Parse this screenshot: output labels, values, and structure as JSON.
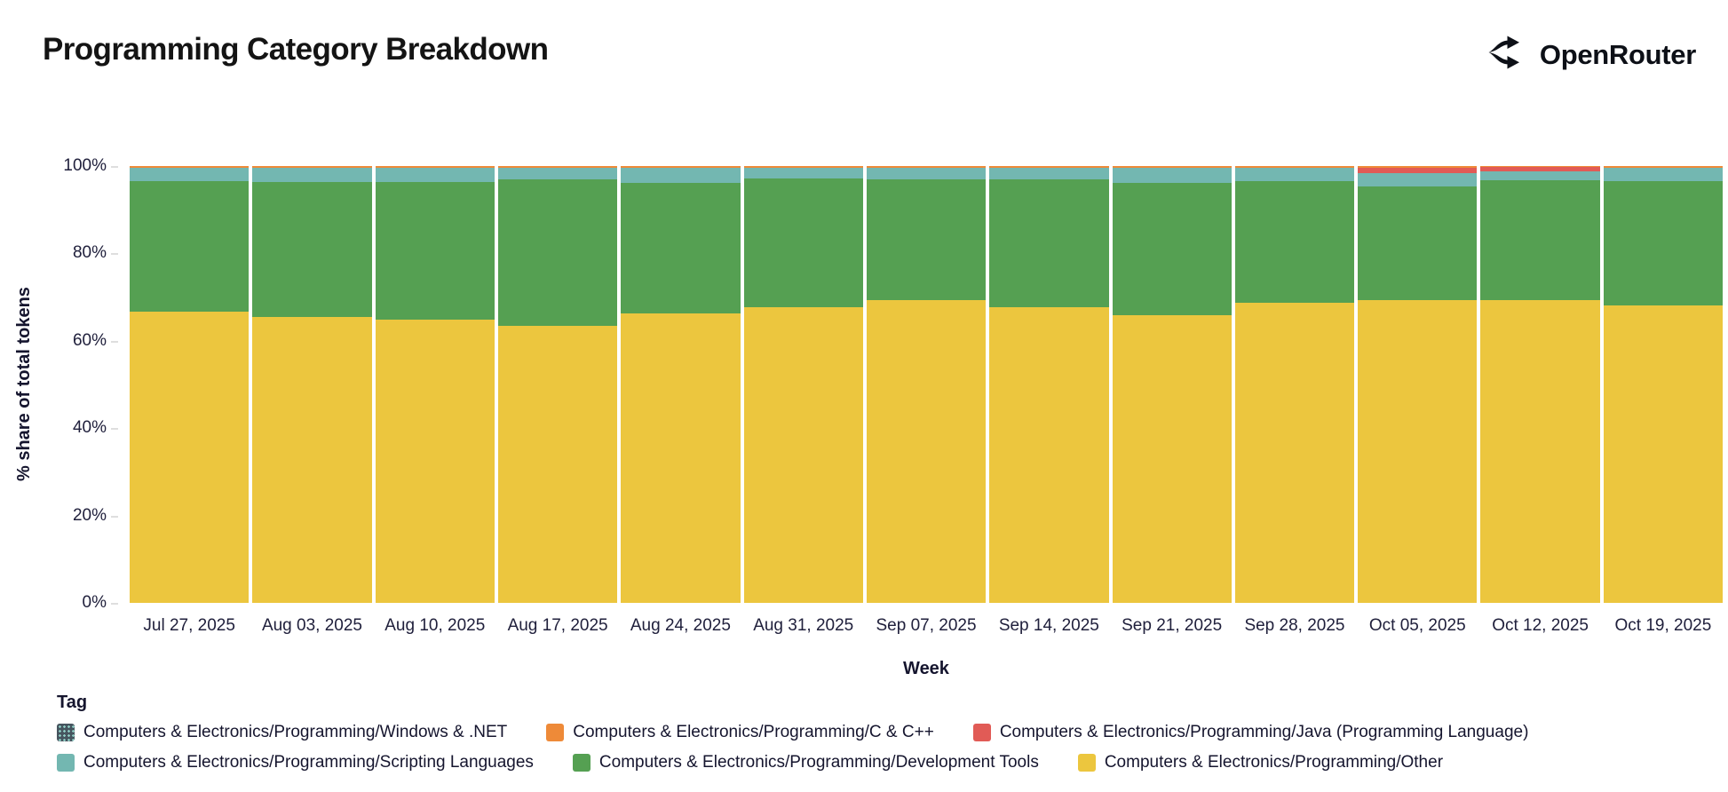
{
  "header": {
    "title": "Programming Category Breakdown",
    "brand": "OpenRouter"
  },
  "icons": {
    "brand_logo": "openrouter-branching-arrows-icon",
    "brand_color": "#0d1017"
  },
  "legend": {
    "title": "Tag"
  },
  "chart_data": {
    "type": "bar",
    "stacked": true,
    "unit": "percent share of total tokens",
    "title": "Programming Category Breakdown",
    "xlabel": "Week",
    "ylabel": "% share of total tokens",
    "ylim": [
      0,
      100
    ],
    "ytick_values": [
      0,
      20,
      40,
      60,
      80,
      100
    ],
    "ytick_labels": [
      "0%",
      "20%",
      "40%",
      "60%",
      "80%",
      "100%"
    ],
    "grid": false,
    "legend_position": "bottom",
    "x": [
      "Jul 27, 2025",
      "Aug 03, 2025",
      "Aug 10, 2025",
      "Aug 17, 2025",
      "Aug 24, 2025",
      "Aug 31, 2025",
      "Sep 07, 2025",
      "Sep 14, 2025",
      "Sep 21, 2025",
      "Sep 28, 2025",
      "Oct 05, 2025",
      "Oct 12, 2025",
      "Oct 19, 2025"
    ],
    "stack_order_note": "series listed top-of-stack first; bars drawn top to bottom",
    "series": [
      {
        "name": "Computers & Electronics/Programming/Windows & .NET",
        "color": "#46555f",
        "pattern": "dots",
        "values": [
          0.1,
          0.1,
          0.1,
          0.1,
          0.1,
          0.1,
          0.1,
          0.1,
          0.1,
          0.1,
          0.1,
          0.1,
          0.1
        ]
      },
      {
        "name": "Computers & Electronics/Programming/C & C++",
        "color": "#ee8a38",
        "pattern": "solid",
        "values": [
          0.4,
          0.4,
          0.4,
          0.4,
          0.4,
          0.4,
          0.4,
          0.4,
          0.4,
          0.4,
          0.3,
          0.2,
          0.4
        ]
      },
      {
        "name": "Computers & Electronics/Programming/Java (Programming Language)",
        "color": "#e15b56",
        "pattern": "solid",
        "values": [
          0,
          0,
          0,
          0,
          0,
          0,
          0,
          0,
          0,
          0,
          1.3,
          1.0,
          0
        ]
      },
      {
        "name": "Computers & Electronics/Programming/Scripting Languages",
        "color": "#73b7b1",
        "pattern": "solid",
        "values": [
          3.0,
          3.2,
          3.1,
          2.6,
          3.3,
          2.3,
          2.5,
          2.6,
          3.3,
          2.9,
          3.0,
          2.0,
          3.0
        ]
      },
      {
        "name": "Computers & Electronics/Programming/Development Tools",
        "color": "#55a052",
        "pattern": "solid",
        "values": [
          29.9,
          30.9,
          31.6,
          33.5,
          29.9,
          29.5,
          27.7,
          29.3,
          30.4,
          27.9,
          25.9,
          27.3,
          28.5
        ]
      },
      {
        "name": "Computers & Electronics/Programming/Other",
        "color": "#ecc63e",
        "pattern": "solid",
        "values": [
          66.6,
          65.4,
          64.8,
          63.4,
          66.3,
          67.7,
          69.3,
          67.6,
          65.8,
          68.7,
          69.4,
          69.4,
          68.0
        ]
      }
    ]
  }
}
